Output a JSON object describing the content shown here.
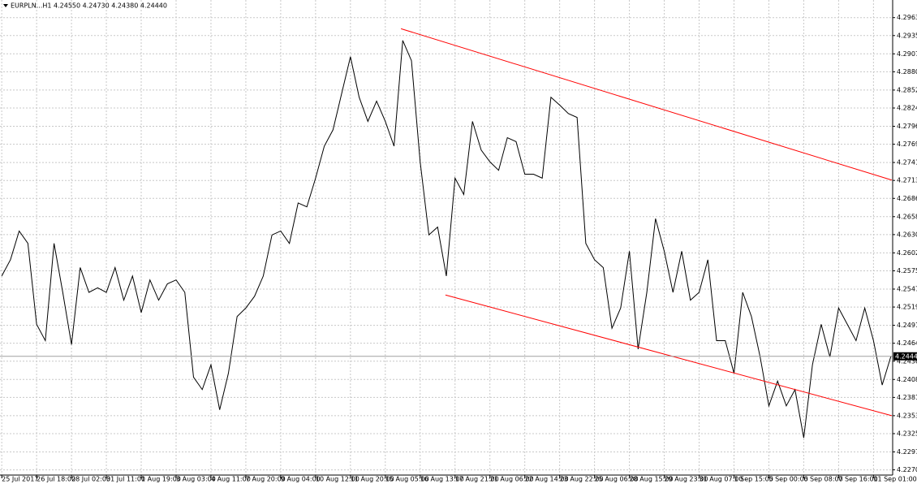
{
  "chart_data": {
    "type": "line",
    "title": "EURPLN...H1  4.24550 4.24730 4.24380 4.24440",
    "series": [
      {
        "name": "EURPLN,H1",
        "color": "#000000",
        "values": [
          4.2567,
          4.2592,
          4.2636,
          4.2617,
          4.2493,
          4.2468,
          4.2617,
          4.2542,
          4.2462,
          4.258,
          4.2542,
          4.2549,
          4.2542,
          4.258,
          4.253,
          4.2567,
          4.2511,
          4.2561,
          4.253,
          4.2555,
          4.2561,
          4.2542,
          4.2412,
          4.2393,
          4.2431,
          4.2362,
          4.2418,
          4.2505,
          4.2518,
          4.2536,
          4.2567,
          4.263,
          4.2636,
          4.2617,
          4.2679,
          4.2673,
          4.2717,
          4.2766,
          4.2791,
          4.2847,
          4.2903,
          4.2841,
          4.2804,
          4.2835,
          4.2804,
          4.2766,
          4.2928,
          4.2897,
          4.2742,
          4.263,
          4.2642,
          4.2567,
          4.2717,
          4.2692,
          4.2804,
          4.276,
          4.2742,
          4.2729,
          4.2779,
          4.2773,
          4.2723,
          4.2723,
          4.2717,
          4.2841,
          4.2829,
          4.2816,
          4.281,
          4.2617,
          4.2592,
          4.258,
          4.2487,
          4.2518,
          4.2605,
          4.2455,
          4.2542,
          4.2655,
          4.2605,
          4.2542,
          4.2605,
          4.253,
          4.2542,
          4.2592,
          4.2468,
          4.2468,
          4.2418,
          4.2542,
          4.2505,
          4.2443,
          4.2368,
          4.2406,
          4.2368,
          4.2393,
          4.2319,
          4.2431,
          4.2493,
          4.2443,
          4.2518,
          4.2493,
          4.2468,
          4.2518,
          4.2468,
          4.24,
          4.2444
        ]
      }
    ],
    "xlim": [
      -0.2,
      102.2
    ],
    "xticks": [
      {
        "value": 0,
        "label": "25 Jul 2017"
      },
      {
        "value": 4,
        "label": "26 Jul 18:00"
      },
      {
        "value": 8,
        "label": "28 Jul 02:00"
      },
      {
        "value": 12,
        "label": "31 Jul 11:00"
      },
      {
        "value": 16,
        "label": "1 Aug 19:00"
      },
      {
        "value": 20,
        "label": "3 Aug 03:00"
      },
      {
        "value": 24,
        "label": "4 Aug 11:00"
      },
      {
        "value": 28,
        "label": "7 Aug 20:00"
      },
      {
        "value": 32,
        "label": "9 Aug 04:00"
      },
      {
        "value": 36,
        "label": "10 Aug 12:00"
      },
      {
        "value": 40,
        "label": "11 Aug 20:00"
      },
      {
        "value": 44,
        "label": "15 Aug 05:00"
      },
      {
        "value": 48,
        "label": "16 Aug 13:00"
      },
      {
        "value": 52,
        "label": "17 Aug 21:00"
      },
      {
        "value": 56,
        "label": "21 Aug 06:00"
      },
      {
        "value": 60,
        "label": "22 Aug 14:00"
      },
      {
        "value": 64,
        "label": "23 Aug 22:00"
      },
      {
        "value": 68,
        "label": "25 Aug 06:00"
      },
      {
        "value": 72,
        "label": "28 Aug 15:00"
      },
      {
        "value": 76,
        "label": "29 Aug 23:00"
      },
      {
        "value": 80,
        "label": "31 Aug 07:00"
      },
      {
        "value": 84,
        "label": "1 Sep 15:00"
      },
      {
        "value": 88,
        "label": "5 Sep 00:00"
      },
      {
        "value": 92,
        "label": "6 Sep 08:00"
      },
      {
        "value": 96,
        "label": "7 Sep 16:00"
      },
      {
        "value": 100,
        "label": "11 Sep 01:00"
      }
    ],
    "ylim": [
      4.2262,
      4.299
    ],
    "yticks": [
      {
        "value": 4.2963,
        "label": "4.29630"
      },
      {
        "value": 4.29355,
        "label": "4.29355"
      },
      {
        "value": 4.29075,
        "label": "4.29075"
      },
      {
        "value": 4.288,
        "label": "4.28800"
      },
      {
        "value": 4.2852,
        "label": "4.28520"
      },
      {
        "value": 4.28245,
        "label": "4.28245"
      },
      {
        "value": 4.27965,
        "label": "4.27965"
      },
      {
        "value": 4.2769,
        "label": "4.27690"
      },
      {
        "value": 4.2741,
        "label": "4.27410"
      },
      {
        "value": 4.27135,
        "label": "4.27135"
      },
      {
        "value": 4.2686,
        "label": "4.26860"
      },
      {
        "value": 4.2658,
        "label": "4.26580"
      },
      {
        "value": 4.26305,
        "label": "4.26305"
      },
      {
        "value": 4.26025,
        "label": "4.26025"
      },
      {
        "value": 4.2575,
        "label": "4.25750"
      },
      {
        "value": 4.2547,
        "label": "4.25470"
      },
      {
        "value": 4.25195,
        "label": "4.25195"
      },
      {
        "value": 4.24915,
        "label": "4.24915"
      },
      {
        "value": 4.2464,
        "label": "4.24640"
      },
      {
        "value": 4.24365,
        "label": "4.24365"
      },
      {
        "value": 4.24085,
        "label": "4.24085"
      },
      {
        "value": 4.2381,
        "label": "4.23810"
      },
      {
        "value": 4.2353,
        "label": "4.23530"
      },
      {
        "value": 4.23255,
        "label": "4.23255"
      },
      {
        "value": 4.22975,
        "label": "4.22975"
      },
      {
        "value": 4.227,
        "label": "4.22700"
      }
    ],
    "grid": true,
    "last_price": {
      "value": 4.2444,
      "label": "4.24440"
    },
    "trendlines": [
      {
        "color": "#ff0000",
        "x": [
          45.8,
          102.1
        ],
        "values": [
          4.2946,
          4.2714
        ]
      },
      {
        "color": "#ff0000",
        "x": [
          50.9,
          102.1
        ],
        "values": [
          4.2538,
          4.2353
        ]
      }
    ]
  }
}
